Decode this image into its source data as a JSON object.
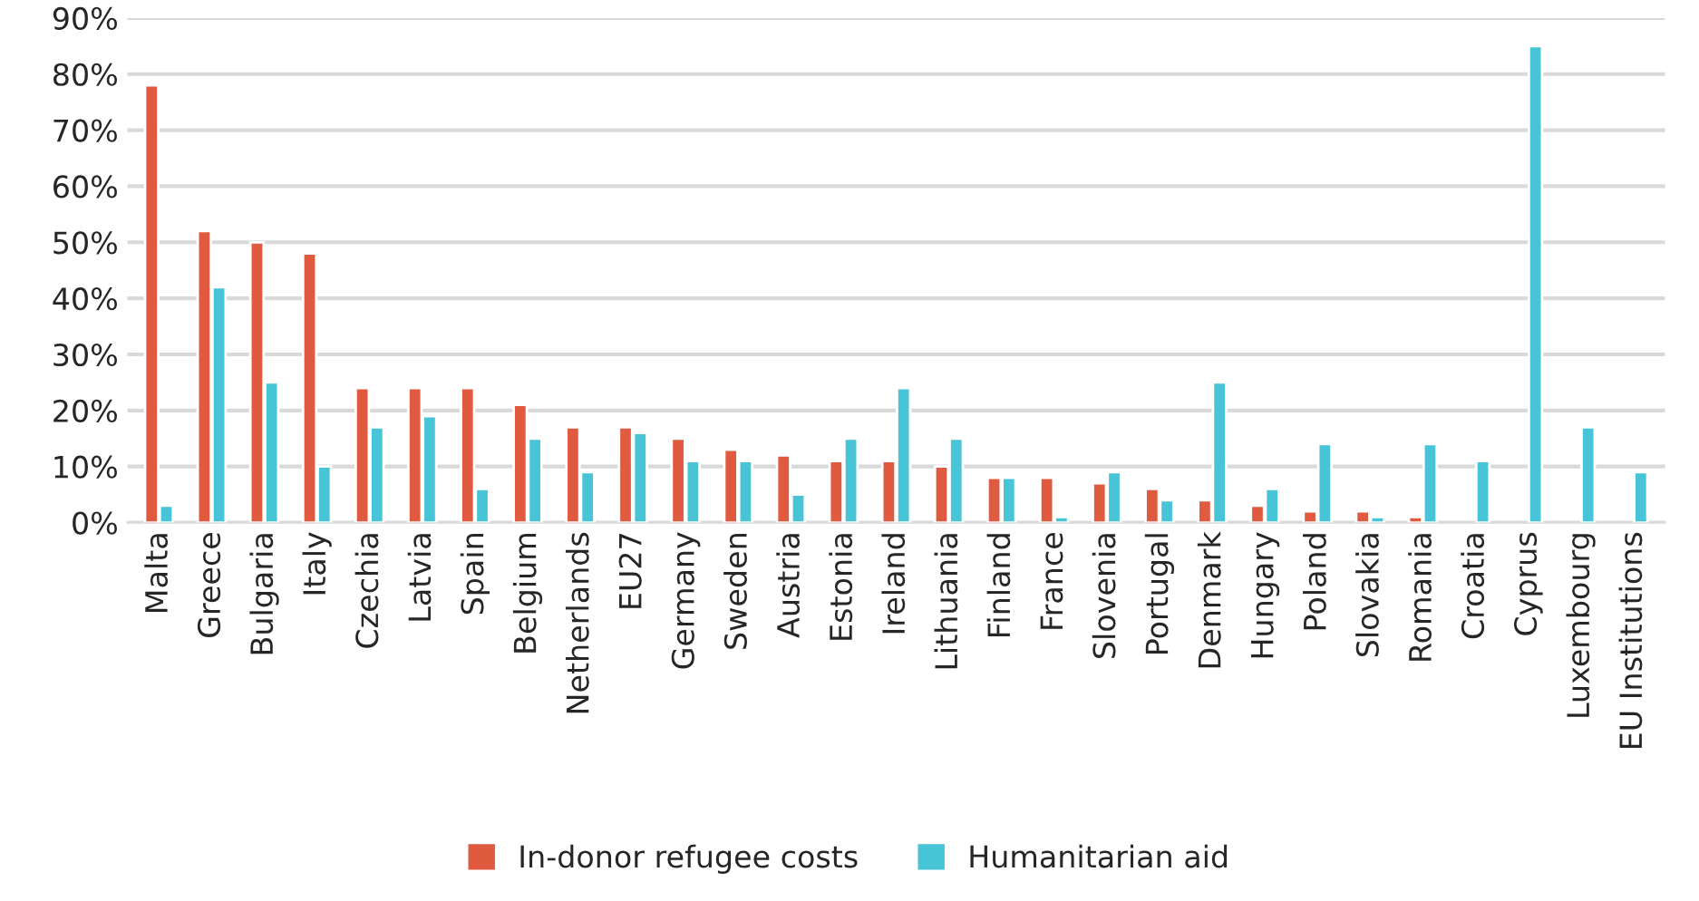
{
  "chart_data": {
    "type": "bar",
    "categories": [
      "Malta",
      "Greece",
      "Bulgaria",
      "Italy",
      "Czechia",
      "Latvia",
      "Spain",
      "Belgium",
      "Netherlands",
      "EU27",
      "Germany",
      "Sweden",
      "Austria",
      "Estonia",
      "Ireland",
      "Lithuania",
      "Finland",
      "France",
      "Slovenia",
      "Portugal",
      "Denmark",
      "Hungary",
      "Poland",
      "Slovakia",
      "Romania",
      "Croatia",
      "Cyprus",
      "Luxembourg",
      "EU Institutions"
    ],
    "series": [
      {
        "name": "In-donor refugee costs",
        "color": "#e05a40",
        "values": [
          78,
          52,
          50,
          48,
          24,
          24,
          24,
          21,
          17,
          17,
          15,
          13,
          12,
          11,
          11,
          10,
          8,
          8,
          7,
          6,
          4,
          3,
          2,
          2,
          1,
          null,
          null,
          null,
          null
        ]
      },
      {
        "name": "Humanitarian aid",
        "color": "#47c4d6",
        "values": [
          3,
          42,
          25,
          10,
          17,
          19,
          6,
          15,
          9,
          16,
          11,
          11,
          5,
          15,
          24,
          15,
          8,
          1,
          9,
          4,
          25,
          6,
          14,
          1,
          14,
          11,
          85,
          17,
          9
        ]
      }
    ],
    "ylim": [
      0,
      90
    ],
    "yticks": [
      {
        "value": 0,
        "label": "0%"
      },
      {
        "value": 10,
        "label": "10%"
      },
      {
        "value": 20,
        "label": "20%"
      },
      {
        "value": 30,
        "label": "30%"
      },
      {
        "value": 40,
        "label": "40%"
      },
      {
        "value": 50,
        "label": "50%"
      },
      {
        "value": 60,
        "label": "60%"
      },
      {
        "value": 70,
        "label": "70%"
      },
      {
        "value": 80,
        "label": "80%"
      },
      {
        "value": 90,
        "label": "90%"
      }
    ],
    "grid": "y",
    "legend": "bottom"
  }
}
